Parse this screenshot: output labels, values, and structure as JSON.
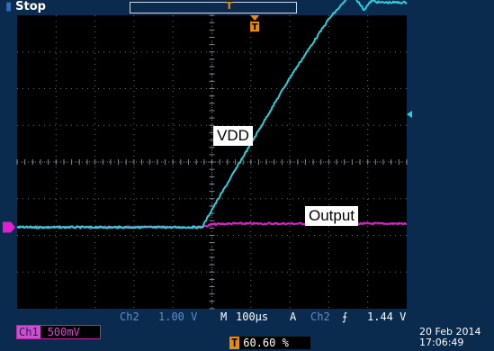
{
  "status": {
    "state": "Stop",
    "ch2_label": "Ch2",
    "ch2_scale": "1.00 V",
    "timebase_prefix": "M",
    "timebase": "100µs",
    "trigger_mode": "A",
    "trigger_source": "Ch2",
    "trigger_slope": "⨍",
    "trigger_level": "1.44 V",
    "ch1_tag": "Ch1",
    "ch1_scale": "500mV",
    "trigger_position_icon": "T",
    "trigger_position": "60.60 %",
    "date": "20 Feb 2014",
    "time": "17:06:49"
  },
  "colors": {
    "vdd": "#27d2dc",
    "output": "#e020d0",
    "trigger": "#f08a00",
    "grid": "#7f8a99",
    "background": "#000000"
  },
  "chart_data": {
    "type": "line",
    "title": "",
    "xlabel": "",
    "ylabel": "",
    "x_unit": "div",
    "y_unit": "div",
    "xlim": [
      0,
      10
    ],
    "ylim": [
      -4,
      4
    ],
    "grid": true,
    "annotations": [
      "VDD",
      "Output"
    ],
    "series": [
      {
        "name": "VDD",
        "color": "#27d2dc",
        "x": [
          0,
          1,
          2,
          3,
          4,
          4.75,
          5.0,
          6.0,
          7.0,
          8.0,
          8.6,
          8.9,
          9.1,
          9.3,
          9.6,
          10
        ],
        "y": [
          -1.78,
          -1.78,
          -1.78,
          -1.78,
          -1.78,
          -1.78,
          -1.3,
          0.5,
          2.3,
          3.9,
          4.6,
          4.15,
          4.4,
          4.35,
          4.35,
          4.35
        ]
      },
      {
        "name": "Output",
        "color": "#e020d0",
        "x": [
          0,
          1,
          2,
          3,
          4,
          4.8,
          5.0,
          5.5,
          6,
          7,
          8,
          9,
          10
        ],
        "y": [
          -1.78,
          -1.78,
          -1.78,
          -1.78,
          -1.78,
          -1.76,
          -1.7,
          -1.68,
          -1.68,
          -1.68,
          -1.68,
          -1.68,
          -1.68
        ]
      }
    ]
  }
}
